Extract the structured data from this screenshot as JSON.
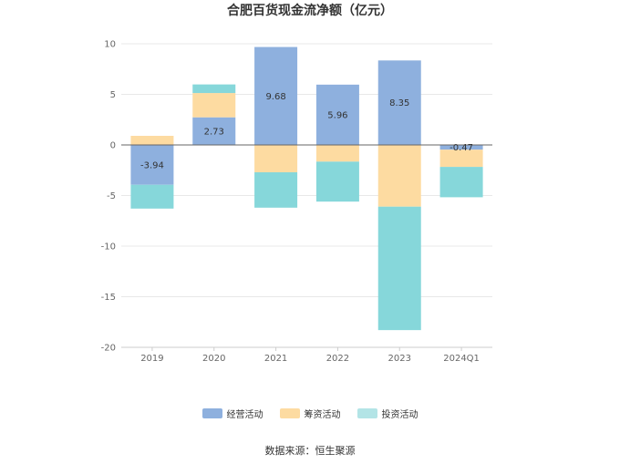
{
  "chart_data": {
    "type": "bar",
    "stacked": true,
    "title": "合肥百货现金流净额（亿元）",
    "categories": [
      "2019",
      "2020",
      "2021",
      "2022",
      "2023",
      "2024Q1"
    ],
    "ylim": [
      -20,
      10
    ],
    "yticks": [
      10,
      5,
      0,
      -5,
      -10,
      -15,
      -20
    ],
    "grid": true,
    "legend_position": "bottom",
    "series": [
      {
        "name": "经营活动",
        "color": "#8eb0de",
        "values": [
          -3.94,
          2.73,
          9.68,
          5.96,
          8.35,
          -0.47
        ],
        "labels": [
          "-3.94",
          "2.73",
          "9.68",
          "5.96",
          "8.35",
          "-0.47"
        ]
      },
      {
        "name": "筹资活动",
        "color": "#fddba1",
        "values": [
          0.9,
          2.4,
          -2.7,
          -1.65,
          -6.1,
          -1.7
        ]
      },
      {
        "name": "投资活动",
        "color": "#86d7da",
        "values": [
          -2.35,
          0.85,
          -3.5,
          -3.95,
          -12.2,
          -3.0
        ]
      }
    ]
  },
  "legend": {
    "items": [
      {
        "label": "经营活动",
        "color": "#8eb0de"
      },
      {
        "label": "筹资活动",
        "color": "#fddba1"
      },
      {
        "label": "投资活动",
        "color": "#b3e4e6"
      }
    ]
  },
  "footer": {
    "source": "数据来源：恒生聚源"
  }
}
